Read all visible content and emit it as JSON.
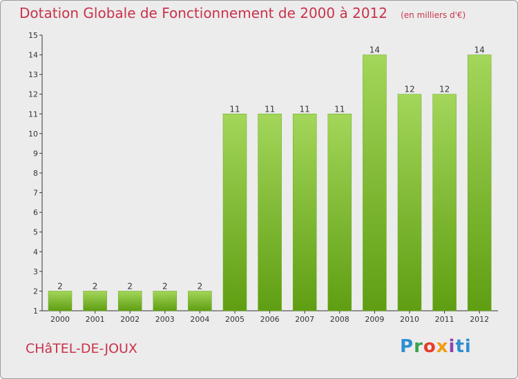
{
  "header": {
    "title": "Dotation Globale de Fonctionnement de 2000 à 2012",
    "unit": "(en milliers d'€)"
  },
  "footer": {
    "commune": "CHâTEL-DE-JOUX",
    "logo": "Proxiti"
  },
  "colors": {
    "title": "#c8324a",
    "bar_light": "#a3d65a",
    "bar_dark": "#5f9e12",
    "background": "#ececec"
  },
  "chart_data": {
    "type": "bar",
    "title": "Dotation Globale de Fonctionnement de 2000 à 2012",
    "ylabel": "(en milliers d'€)",
    "xlabel": "",
    "categories": [
      "2000",
      "2001",
      "2002",
      "2003",
      "2004",
      "2005",
      "2006",
      "2007",
      "2008",
      "2009",
      "2010",
      "2011",
      "2012"
    ],
    "values": [
      2,
      2,
      2,
      2,
      2,
      11,
      11,
      11,
      11,
      14,
      12,
      12,
      14
    ],
    "ylim": [
      1,
      15
    ],
    "yticks": [
      "1",
      "2",
      "3",
      "4",
      "5",
      "6",
      "7",
      "8",
      "9",
      "10",
      "11",
      "12",
      "13",
      "14",
      "15"
    ],
    "grid": false,
    "data_labels": true
  }
}
